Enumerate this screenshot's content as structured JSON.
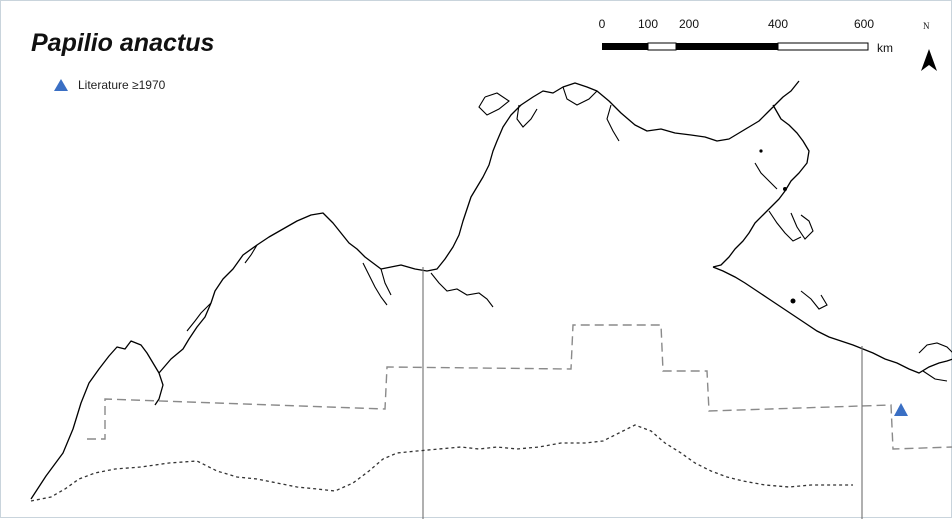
{
  "title": "Papilio anactus",
  "legend": {
    "items": [
      {
        "label": "Literature ≥1970",
        "symbol": "triangle-marker",
        "color": "#3a6fc4"
      }
    ]
  },
  "scale_bar": {
    "ticks": [
      "0",
      "100",
      "200",
      "400",
      "600"
    ],
    "tick_km": [
      0,
      100,
      200,
      400,
      600
    ],
    "unit": "km"
  },
  "north_arrow": {
    "label": "N"
  },
  "colors": {
    "coastline": "#000000",
    "state_border": "#8a8a8a",
    "meridian": "#6f6f6f",
    "range_boundary": "#333333",
    "record_marker": "#3a6fc4"
  },
  "records": [
    {
      "category": "Literature ≥1970"
    }
  ]
}
